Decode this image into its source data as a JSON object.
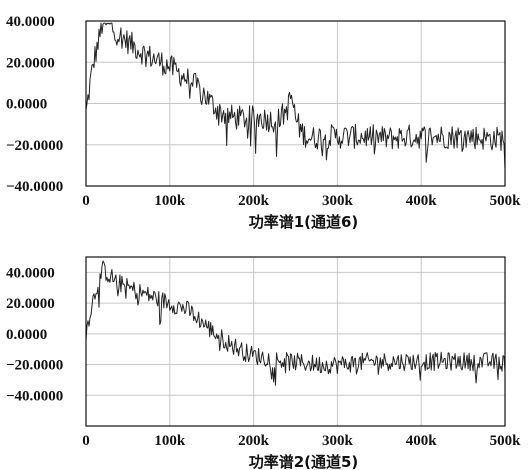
{
  "chart_data": [
    {
      "type": "line",
      "caption": "功率谱1(通道6)",
      "xlim": [
        0,
        500000
      ],
      "ylim": [
        -40,
        40
      ],
      "x_ticks": [
        0,
        100000,
        200000,
        300000,
        400000,
        500000
      ],
      "x_tick_labels": [
        "0",
        "100k",
        "200k",
        "300k",
        "400k",
        "500k"
      ],
      "y_ticks": [
        40,
        20,
        0,
        -20,
        -40
      ],
      "y_tick_labels": [
        "40.0000",
        "20.0000",
        "0.0000",
        "−20.0000",
        "−40.0000"
      ],
      "grid": true,
      "series": [
        {
          "color": "#222222",
          "x": [
            0,
            5000,
            10000,
            15000,
            20000,
            30000,
            40000,
            50000,
            60000,
            70000,
            80000,
            90000,
            100000,
            110000,
            120000,
            130000,
            140000,
            150000,
            160000,
            170000,
            180000,
            190000,
            200000,
            210000,
            220000,
            230000,
            240000,
            245000,
            250000,
            255000,
            260000,
            270000,
            280000,
            290000,
            300000,
            320000,
            340000,
            360000,
            380000,
            400000,
            420000,
            440000,
            460000,
            480000,
            500000
          ],
          "y": [
            -5,
            10,
            22,
            30,
            40,
            37,
            33,
            30,
            27,
            24,
            22,
            20,
            18,
            15,
            12,
            9,
            5,
            0,
            -4,
            -6,
            -7,
            -7,
            -7,
            -7,
            -8,
            -8,
            -3,
            4,
            -7,
            -12,
            -15,
            -17,
            -16,
            -16,
            -16,
            -16,
            -16,
            -17,
            -16,
            -16,
            -16,
            -16,
            -16,
            -17,
            -17
          ]
        }
      ]
    },
    {
      "type": "line",
      "caption": "功率谱2(通道5)",
      "xlim": [
        0,
        500000
      ],
      "ylim": [
        -60,
        50
      ],
      "x_ticks": [
        0,
        100000,
        200000,
        300000,
        400000,
        500000
      ],
      "x_tick_labels": [
        "0",
        "100k",
        "200k",
        "300k",
        "400k",
        "500k"
      ],
      "y_ticks": [
        40,
        20,
        0,
        -20,
        -40
      ],
      "y_tick_labels": [
        "40.0000",
        "20.0000",
        "0.0000",
        "−20.0000",
        "−40.0000"
      ],
      "grid": true,
      "series": [
        {
          "color": "#222222",
          "x": [
            0,
            5000,
            10000,
            15000,
            20000,
            30000,
            40000,
            50000,
            60000,
            70000,
            80000,
            90000,
            100000,
            110000,
            120000,
            130000,
            140000,
            150000,
            160000,
            170000,
            180000,
            190000,
            200000,
            210000,
            220000,
            230000,
            240000,
            260000,
            280000,
            300000,
            320000,
            340000,
            360000,
            380000,
            400000,
            420000,
            440000,
            460000,
            480000,
            500000
          ],
          "y": [
            0,
            15,
            25,
            35,
            42,
            37,
            33,
            30,
            28,
            26,
            24,
            22,
            20,
            18,
            16,
            12,
            7,
            2,
            -2,
            -6,
            -9,
            -12,
            -14,
            -15,
            -16,
            -17,
            -18,
            -19,
            -20,
            -20,
            -19,
            -18,
            -18,
            -18,
            -18,
            -18,
            -18,
            -18,
            -18,
            -19
          ]
        }
      ]
    }
  ]
}
